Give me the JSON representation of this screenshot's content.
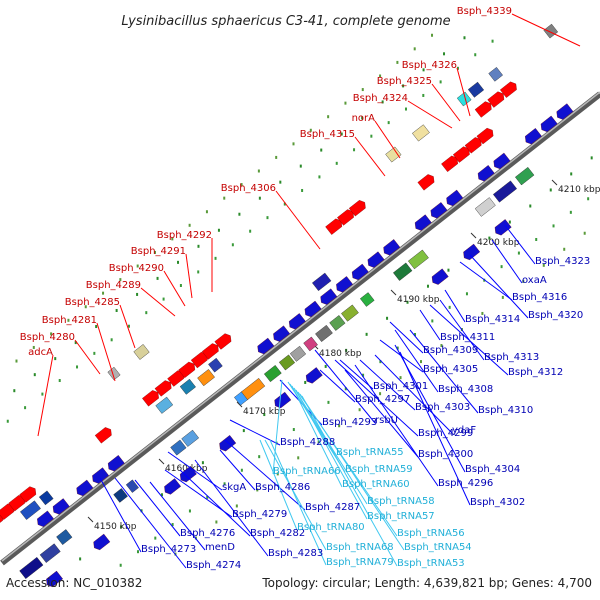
{
  "title": "Lysinibacillus sphaericus C3-41, complete genome",
  "footer": {
    "accession": "Accession: NC_010382",
    "summary": "Topology: circular; Length: 4,639,821 bp; Genes: 4,700"
  },
  "ticks": [
    "4150 kbp",
    "4160 kbp",
    "4170 kbp",
    "4180 kbp",
    "4190 kbp",
    "4200 kbp",
    "4210 kbp"
  ],
  "colors": {
    "forward_gene": "#ff0000",
    "reverse_gene": "#1010d0",
    "forward_label": "#c40000",
    "reverse_label": "#0000b4",
    "rna_label": "#22b0d8",
    "backbone": "#7a7a7a"
  },
  "labels_forward": [
    "adcA",
    "Bsph_4280",
    "Bsph_4281",
    "Bsph_4285",
    "Bsph_4289",
    "Bsph_4290",
    "Bsph_4291",
    "Bsph_4292",
    "Bsph_4306",
    "Bsph_4315",
    "norA",
    "Bsph_4324",
    "Bsph_4325",
    "Bsph_4326",
    "Bsph_4339"
  ],
  "labels_reverse": [
    "Bsph_4273",
    "Bsph_4274",
    "Bsph_4276",
    "menD",
    "Bsph_4279",
    "skgA",
    "Bsph_4282",
    "Bsph_4283",
    "Bsph_4287",
    "Bsph_4286",
    "Bsph_4288",
    "Bsph_4293",
    "rsbU",
    "Bsph_4297",
    "Bsph_4299",
    "Bsph_4301",
    "Bsph_4300",
    "Bsph_4296",
    "Bsph_4303",
    "ydaF",
    "Bsph_4305",
    "Bsph_4308",
    "Bsph_4309",
    "Bsph_4304",
    "Bsph_4302",
    "Bsph_4311",
    "Bsph_4312",
    "Bsph_4313",
    "Bsph_4310",
    "Bsph_4314",
    "Bsph_4316",
    "Bsph_4320",
    "oxaA",
    "Bsph_4323"
  ],
  "labels_rna": [
    "Bsph_tRNA66",
    "Bsph_tRNA55",
    "Bsph_tRNA59",
    "Bsph_tRNA60",
    "Bsph_tRNA58",
    "Bsph_tRNA57",
    "Bsph_tRNA56",
    "Bsph_tRNA54",
    "Bsph_tRNA53",
    "Bsph_tRNA80",
    "Bsph_tRNA68",
    "Bsph_tRNA79"
  ]
}
